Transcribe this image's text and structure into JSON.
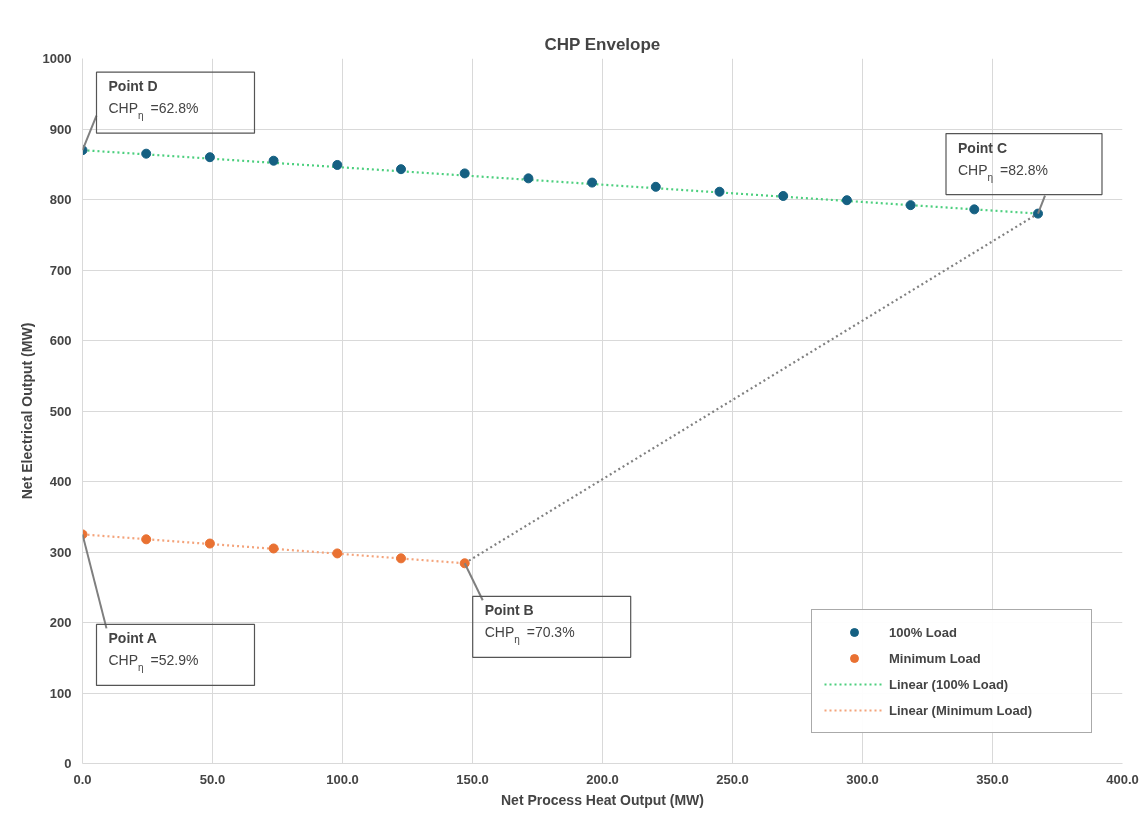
{
  "chart_data": {
    "type": "scatter",
    "title": "CHP Envelope",
    "xlabel": "Net Process Heat Output (MW)",
    "ylabel": "Net Electrical Output (MW)",
    "xlim": [
      0,
      400
    ],
    "ylim": [
      0,
      1000
    ],
    "xticks": [
      {
        "value": 0,
        "label": "0.0"
      },
      {
        "value": 50,
        "label": "50.0"
      },
      {
        "value": 100,
        "label": "100.0"
      },
      {
        "value": 150,
        "label": "150.0"
      },
      {
        "value": 200,
        "label": "200.0"
      },
      {
        "value": 250,
        "label": "250.0"
      },
      {
        "value": 300,
        "label": "300.0"
      },
      {
        "value": 350,
        "label": "350.0"
      },
      {
        "value": 400,
        "label": "400.0"
      }
    ],
    "yticks": [
      0,
      100,
      200,
      300,
      400,
      500,
      600,
      700,
      800,
      900,
      1000
    ],
    "grid": true,
    "legend": "bottom right",
    "series": [
      {
        "name": "100% Load",
        "color": "#156082",
        "marker": "circle",
        "x": [
          0,
          24.5,
          49,
          73.5,
          98,
          122.5,
          147,
          171.5,
          196,
          220.5,
          245,
          269.5,
          294,
          318.5,
          343,
          367.5
        ],
        "values": [
          870,
          865,
          860,
          855,
          849,
          843,
          837,
          830,
          824,
          818,
          811,
          805,
          799,
          792,
          786,
          780
        ]
      },
      {
        "name": "Minimum Load",
        "color": "#e97132",
        "marker": "circle",
        "x": [
          0,
          24.5,
          49,
          73.5,
          98,
          122.5,
          147
        ],
        "values": [
          325,
          318,
          312,
          305,
          298,
          291,
          284
        ]
      },
      {
        "type": "line",
        "name": "Linear (100% Load)",
        "color": "#4ccf7e",
        "marker": "none",
        "line_style": "dotted",
        "x": [
          0,
          367.5
        ],
        "values": [
          870,
          780
        ]
      },
      {
        "type": "line",
        "name": "Linear (Minimum Load)",
        "color": "#f4a37a",
        "marker": "none",
        "line_style": "dotted",
        "x": [
          0,
          147
        ],
        "values": [
          325,
          284
        ]
      },
      {
        "type": "line",
        "color": "#808080",
        "marker": "none",
        "line_style": "dotted",
        "x": [
          147,
          367.5
        ],
        "values": [
          284,
          780
        ]
      }
    ],
    "annotations": [
      {
        "text": "Point D\nCHP$_{η}$ =62.8%",
        "x": 0,
        "y": 870
      },
      {
        "text": "Point C\nCHP$_{η}$ =82.8%",
        "x": 367.5,
        "y": 780
      },
      {
        "text": "Point A\nCHP$_{η}$ =52.9%",
        "x": 0,
        "y": 325
      },
      {
        "text": "Point B\nCHP$_{η}$ =70.3%",
        "x": 147,
        "y": 284
      }
    ]
  }
}
